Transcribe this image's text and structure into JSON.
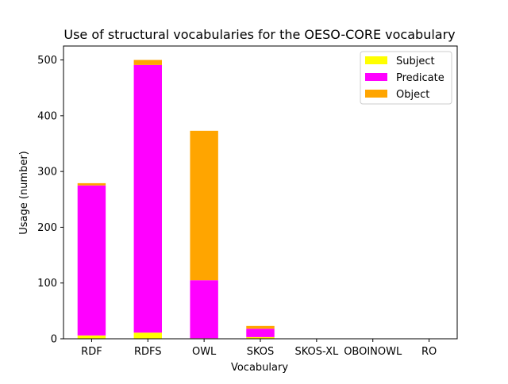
{
  "chart_data": {
    "type": "bar",
    "stacked": true,
    "title": "Use of structural vocabularies for the OESO-CORE vocabulary",
    "xlabel": "Vocabulary",
    "ylabel": "Usage (number)",
    "categories": [
      "RDF",
      "RDFS",
      "OWL",
      "SKOS",
      "SKOS-XL",
      "OBOINOWL",
      "RO"
    ],
    "series": [
      {
        "name": "Subject",
        "color": "#ffff00",
        "values": [
          6,
          11,
          1,
          3,
          0,
          0,
          0
        ]
      },
      {
        "name": "Predicate",
        "color": "#ff00ff",
        "values": [
          269,
          480,
          104,
          15,
          0,
          0,
          0
        ]
      },
      {
        "name": "Object",
        "color": "#ffa500",
        "values": [
          4,
          9,
          268,
          5,
          0,
          0,
          0
        ]
      }
    ],
    "ylim": [
      0,
      525
    ],
    "yticks": [
      0,
      100,
      200,
      300,
      400,
      500
    ],
    "grid": false,
    "legend": "top-right"
  }
}
